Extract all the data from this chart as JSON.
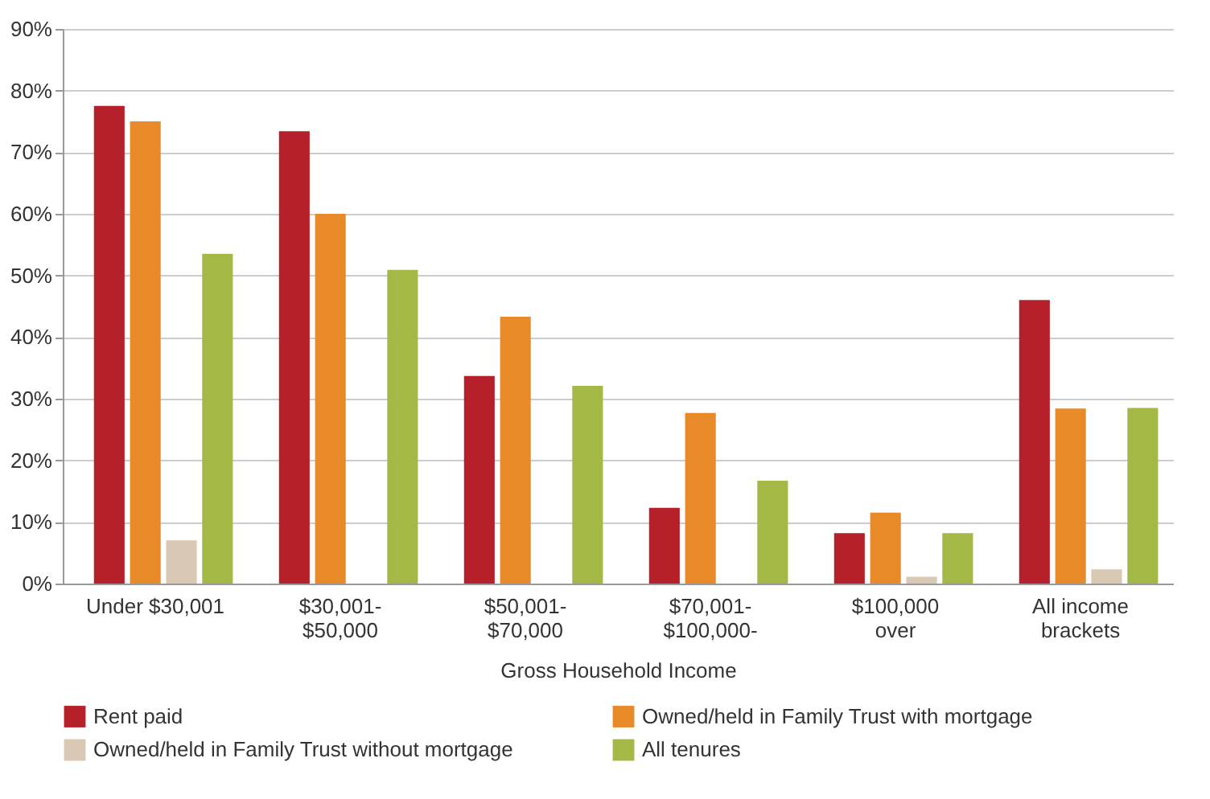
{
  "chart_data": {
    "type": "bar",
    "xlabel": "Gross Household Income",
    "categories": [
      "Under $30,001",
      "$30,001-\n$50,000",
      "$50,001-\n$70,000",
      "$70,001-\n$100,000-",
      "$100,000\nover",
      "All income\nbrackets"
    ],
    "series": [
      {
        "name": "Rent paid",
        "color": "#b5202a",
        "values": [
          77.5,
          73.4,
          33.7,
          12.3,
          8.2,
          46
        ]
      },
      {
        "name": "Owned/held in Family Trust with mortgage",
        "color": "#e8892a",
        "values": [
          75,
          60,
          43.3,
          27.7,
          11.5,
          28.4
        ]
      },
      {
        "name": "Owned/held in Family Trust without mortgage",
        "color": "#d9c8b4",
        "values": [
          7,
          null,
          null,
          null,
          1.1,
          2.3
        ]
      },
      {
        "name": "All tenures",
        "color": "#a3b847",
        "values": [
          53.5,
          50.9,
          32.1,
          16.7,
          8.2,
          28.5
        ]
      }
    ],
    "ylim": [
      0,
      90
    ],
    "yticks": [
      {
        "value": 0,
        "label": "0%"
      },
      {
        "value": 10,
        "label": "10%"
      },
      {
        "value": 20,
        "label": "20%"
      },
      {
        "value": 30,
        "label": "30%"
      },
      {
        "value": 40,
        "label": "40%"
      },
      {
        "value": 50,
        "label": "50%"
      },
      {
        "value": 60,
        "label": "60%"
      },
      {
        "value": 70,
        "label": "70%"
      },
      {
        "value": 80,
        "label": "80%"
      },
      {
        "value": 90,
        "label": "90%"
      }
    ],
    "grid": "y",
    "legend": "bottom"
  }
}
